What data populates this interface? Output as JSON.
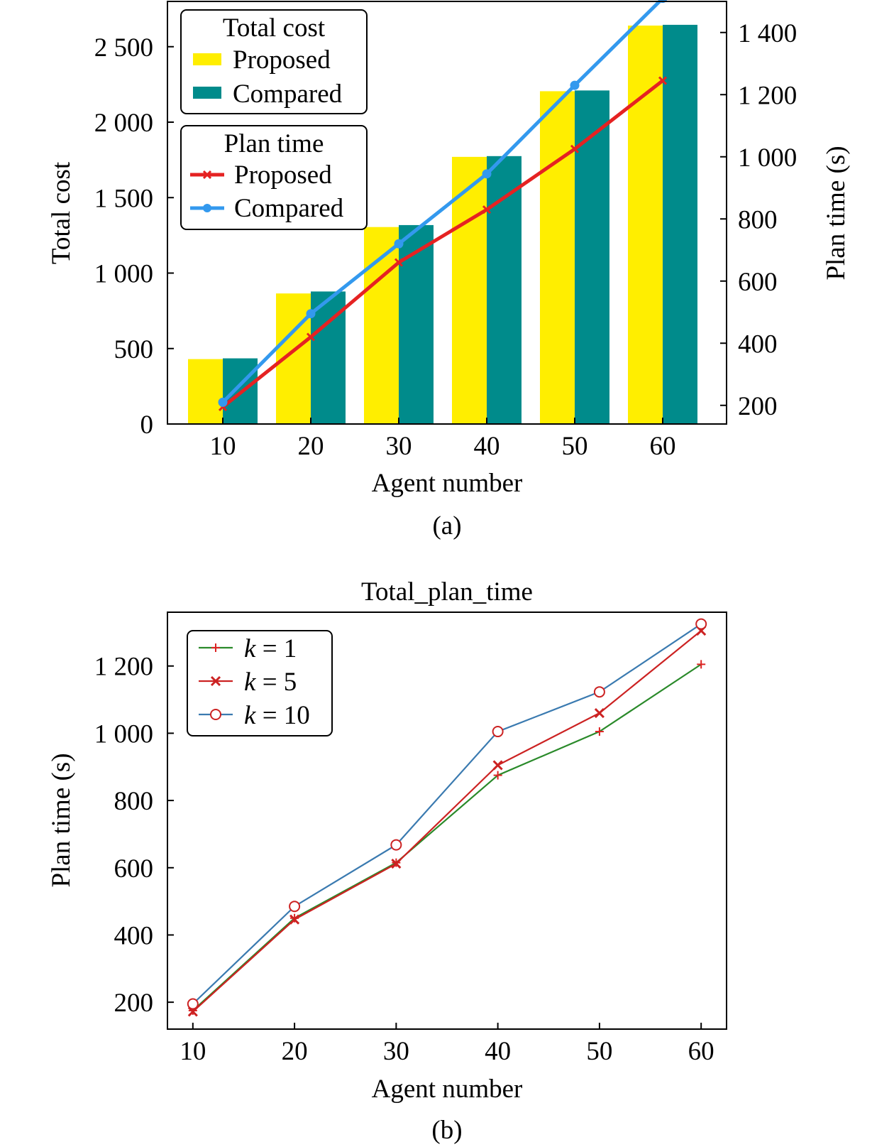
{
  "chart_data": [
    {
      "type": "bar+line",
      "panel_label": "(a)",
      "xlabel": "Agent number",
      "ylabel_left": "Total cost",
      "ylabel_right": "Plan time (s)",
      "categories": [
        "10",
        "20",
        "30",
        "40",
        "50",
        "60"
      ],
      "ylim_left": [
        0,
        2800
      ],
      "yticks_left": [
        0,
        500,
        1000,
        1500,
        2000,
        2500
      ],
      "ytick_labels_left": [
        "0",
        "500",
        "1 000",
        "1 500",
        "2 000",
        "2 500"
      ],
      "ylim_right": [
        140,
        1500
      ],
      "yticks_right": [
        200,
        400,
        600,
        800,
        1000,
        1200,
        1400
      ],
      "ytick_labels_right": [
        "200",
        "400",
        "600",
        "800",
        "1 000",
        "1 200",
        "1 400"
      ],
      "grid": false,
      "bar_legend": {
        "title": "Total cost",
        "placement": "top-left",
        "entries": [
          "Proposed",
          "Compared"
        ]
      },
      "line_legend": {
        "title": "Plan time",
        "placement": "upper-left",
        "entries": [
          "Proposed",
          "Compared"
        ]
      },
      "bar_series": [
        {
          "name": "Proposed",
          "color": "#ffee00",
          "values": [
            430,
            865,
            1305,
            1770,
            2205,
            2640
          ]
        },
        {
          "name": "Compared",
          "color": "#008b8b",
          "values": [
            435,
            878,
            1318,
            1775,
            2210,
            2645
          ]
        }
      ],
      "line_series": [
        {
          "name": "Proposed",
          "color": "#e52222",
          "marker": "x",
          "values": [
            195,
            420,
            660,
            830,
            1025,
            1245
          ]
        },
        {
          "name": "Compared",
          "color": "#3399ee",
          "marker": "o",
          "values": [
            210,
            495,
            720,
            945,
            1230,
            1510
          ]
        }
      ]
    },
    {
      "type": "line",
      "panel_label": "(b)",
      "title": "Total_plan_time",
      "xlabel": "Agent number",
      "ylabel": "Plan time (s)",
      "x": [
        10,
        20,
        30,
        40,
        50,
        60
      ],
      "xticks": [
        "10",
        "20",
        "30",
        "40",
        "50",
        "60"
      ],
      "xlim": [
        7.5,
        62.5
      ],
      "ylim": [
        120,
        1360
      ],
      "yticks": [
        200,
        400,
        600,
        800,
        1000,
        1200
      ],
      "ytick_labels": [
        "200",
        "400",
        "600",
        "800",
        "1 000",
        "1 200"
      ],
      "grid": false,
      "legend": {
        "placement": "top-left"
      },
      "series": [
        {
          "name": "k = 1",
          "legend_italic": "k",
          "legend_rest": " = 1",
          "line_color": "#2a8a2a",
          "marker_color": "#dd2222",
          "marker": "+",
          "values": [
            175,
            450,
            615,
            875,
            1005,
            1205
          ]
        },
        {
          "name": "k = 5",
          "legend_italic": "k",
          "legend_rest": " = 5",
          "line_color": "#cc2222",
          "marker_color": "#cc2222",
          "marker": "x",
          "values": [
            172,
            446,
            612,
            905,
            1060,
            1305
          ]
        },
        {
          "name": "k = 10",
          "legend_italic": "k",
          "legend_rest": " = 10",
          "line_color": "#3a7ab0",
          "marker_color": "#cc2222",
          "marker": "o",
          "values": [
            195,
            485,
            668,
            1005,
            1123,
            1325
          ]
        }
      ]
    }
  ]
}
